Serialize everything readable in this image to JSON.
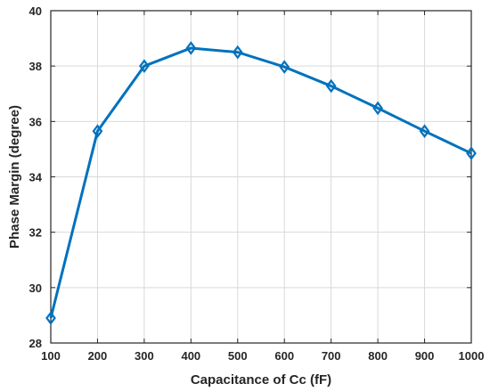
{
  "chart_data": {
    "type": "line",
    "x": [
      100,
      200,
      300,
      400,
      500,
      600,
      700,
      800,
      900,
      1000
    ],
    "series": [
      {
        "values": [
          28.9,
          35.65,
          38.0,
          38.65,
          38.5,
          37.97,
          37.28,
          36.48,
          35.65,
          34.85
        ]
      }
    ],
    "xlabel": "Capacitance of Cc (fF)",
    "ylabel": "Phase Margin (degree)",
    "xlim": [
      100,
      1000
    ],
    "ylim": [
      28,
      40
    ],
    "xticks": [
      100,
      200,
      300,
      400,
      500,
      600,
      700,
      800,
      900,
      1000
    ],
    "yticks": [
      28,
      30,
      32,
      34,
      36,
      38,
      40
    ],
    "grid": true,
    "marker": "diamond",
    "line_color": "#0072BD"
  }
}
